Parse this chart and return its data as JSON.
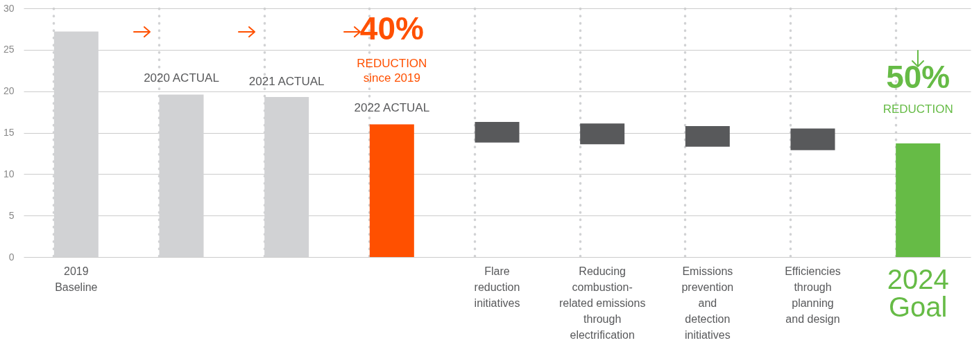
{
  "chart_data": {
    "type": "bar",
    "categories": [
      "2019\nBaseline",
      null,
      null,
      null,
      "Flare\nreduction\ninitiatives",
      "Reducing\ncombustion-\nrelated emissions\nthrough\nelectrification",
      "Emissions\nprevention\nand\ndetection\ninitiatives",
      "Efficiencies\nthrough\nplanning\nand design",
      "2024\nGoal"
    ],
    "values": [
      27.2,
      19.6,
      19.3,
      16.0,
      2.5,
      2.5,
      2.5,
      2.6,
      13.7
    ],
    "base": [
      0,
      0,
      0,
      0,
      13.8,
      13.6,
      13.3,
      12.9,
      0
    ],
    "colors": [
      "#d1d2d4",
      "#d1d2d4",
      "#d1d2d4",
      "#ff5000",
      "#58595b",
      "#58595b",
      "#58595b",
      "#58595b",
      "#66bb46"
    ],
    "ylim": [
      0,
      30
    ],
    "yticks": [
      0,
      5,
      10,
      15,
      20,
      25,
      30
    ],
    "grid": true,
    "annotations": [
      "2020 ACTUAL",
      "2021 ACTUAL",
      "40%",
      "REDUCTION",
      "since 2019",
      "2022 ACTUAL",
      "50%",
      "REDUCTION"
    ]
  }
}
